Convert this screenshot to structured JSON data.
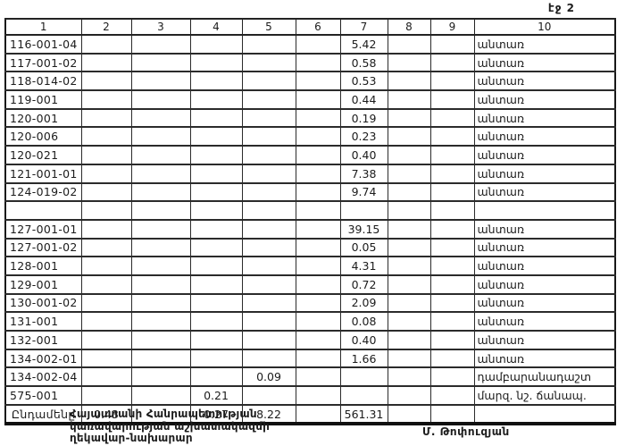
{
  "page": {
    "label": "էջ 2"
  },
  "colors": {
    "ink": "#1c1c1c",
    "paper": "#ffffff"
  },
  "table": {
    "headers": [
      "1",
      "2",
      "3",
      "4",
      "5",
      "6",
      "7",
      "8",
      "9",
      "10"
    ],
    "rows": [
      {
        "cells": [
          "116-001-04",
          "",
          "",
          "",
          "",
          "",
          "5.42",
          "",
          "",
          "անտառ"
        ]
      },
      {
        "cells": [
          "117-001-02",
          "",
          "",
          "",
          "",
          "",
          "0.58",
          "",
          "",
          "անտառ"
        ]
      },
      {
        "cells": [
          "118-014-02",
          "",
          "",
          "",
          "",
          "",
          "0.53",
          "",
          "",
          "անտառ"
        ]
      },
      {
        "cells": [
          "119-001",
          "",
          "",
          "",
          "",
          "",
          "0.44",
          "",
          "",
          "անտառ"
        ]
      },
      {
        "cells": [
          "120-001",
          "",
          "",
          "",
          "",
          "",
          "0.19",
          "",
          "",
          "անտառ"
        ]
      },
      {
        "cells": [
          "120-006",
          "",
          "",
          "",
          "",
          "",
          "0.23",
          "",
          "",
          "անտառ"
        ]
      },
      {
        "cells": [
          "120-021",
          "",
          "",
          "",
          "",
          "",
          "0.40",
          "",
          "",
          "անտառ"
        ]
      },
      {
        "cells": [
          "121-001-01",
          "",
          "",
          "",
          "",
          "",
          "7.38",
          "",
          "",
          "անտառ"
        ]
      },
      {
        "cells": [
          "124-019-02",
          "",
          "",
          "",
          "",
          "",
          "9.74",
          "",
          "",
          "անտառ"
        ]
      },
      {
        "cells": [
          "",
          "",
          "",
          "",
          "",
          "",
          "",
          "",
          "",
          ""
        ]
      },
      {
        "cells": [
          "127-001-01",
          "",
          "",
          "",
          "",
          "",
          "39.15",
          "",
          "",
          "անտառ"
        ]
      },
      {
        "cells": [
          "127-001-02",
          "",
          "",
          "",
          "",
          "",
          "0.05",
          "",
          "",
          "անտառ"
        ]
      },
      {
        "cells": [
          "128-001",
          "",
          "",
          "",
          "",
          "",
          "4.31",
          "",
          "",
          "անտառ"
        ]
      },
      {
        "cells": [
          "129-001",
          "",
          "",
          "",
          "",
          "",
          "0.72",
          "",
          "",
          "անտառ"
        ]
      },
      {
        "cells": [
          "130-001-02",
          "",
          "",
          "",
          "",
          "",
          "2.09",
          "",
          "",
          "անտառ"
        ]
      },
      {
        "cells": [
          "131-001",
          "",
          "",
          "",
          "",
          "",
          "0.08",
          "",
          "",
          "անտառ"
        ]
      },
      {
        "cells": [
          "132-001",
          "",
          "",
          "",
          "",
          "",
          "0.40",
          "",
          "",
          "անտառ"
        ]
      },
      {
        "cells": [
          "134-002-01",
          "",
          "",
          "",
          "",
          "",
          "1.66",
          "",
          "",
          "անտառ"
        ]
      },
      {
        "cells": [
          "134-002-04",
          "",
          "",
          "",
          "0.09",
          "",
          "",
          "",
          "",
          "դամբարանադաշտ"
        ]
      },
      {
        "cells": [
          "575-001",
          "",
          "",
          "0.21",
          "",
          "",
          "",
          "",
          "",
          "մարզ. նշ. ճանապ."
        ]
      },
      {
        "cells": [
          "Ընդամենը",
          "0.43",
          "",
          "0.27",
          "8.22",
          "",
          "561.31",
          "",
          "",
          ""
        ],
        "is_total": true
      }
    ]
  },
  "footer": {
    "issuer_lines": [
      "Հայաստանի Հանրապետության",
      "կառավարության աշխատակազմի",
      "ղեկավար-նախարար"
    ],
    "signature": "Մ. Թոփուզյան"
  }
}
